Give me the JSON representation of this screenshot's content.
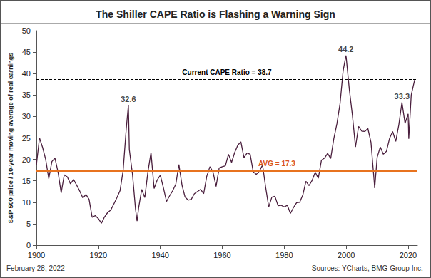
{
  "chart_data": {
    "type": "line",
    "title": "The Shiller CAPE Ratio is Flashing a Warning Sign",
    "ylabel": "S&P 500 price / 10-year moving average of real earnings",
    "date": "February 28, 2022",
    "source": "Sources: YCharts, BMG Group Inc.",
    "x": [
      1900,
      1901,
      1902,
      1903,
      1904,
      1905,
      1906,
      1907,
      1908,
      1909,
      1910,
      1911,
      1912,
      1913,
      1914,
      1915,
      1916,
      1917,
      1918,
      1919,
      1920,
      1921,
      1922,
      1923,
      1924,
      1925,
      1926,
      1927,
      1928,
      1929,
      1929.7,
      1930,
      1931,
      1932,
      1932.5,
      1933,
      1934,
      1935,
      1936,
      1937,
      1938,
      1939,
      1940,
      1941,
      1942,
      1943,
      1944,
      1945,
      1946,
      1947,
      1948,
      1949,
      1950,
      1951,
      1952,
      1953,
      1954,
      1955,
      1956,
      1957,
      1958,
      1959,
      1960,
      1961,
      1962,
      1963,
      1964,
      1965,
      1966,
      1967,
      1968,
      1969,
      1970,
      1971,
      1972,
      1973,
      1974,
      1975,
      1976,
      1977,
      1978,
      1979,
      1980,
      1981,
      1982,
      1983,
      1984,
      1985,
      1986,
      1987,
      1988,
      1989,
      1990,
      1991,
      1992,
      1993,
      1994,
      1995,
      1996,
      1997,
      1998,
      1999,
      1999.9,
      2000,
      2001,
      2002,
      2003,
      2004,
      2005,
      2006,
      2007,
      2008,
      2009,
      2009.2,
      2010,
      2011,
      2012,
      2013,
      2014,
      2015,
      2016,
      2017,
      2018,
      2019,
      2020,
      2020.2,
      2021,
      2022.15
    ],
    "values": [
      18.7,
      25.0,
      22.8,
      20.0,
      15.5,
      19.5,
      20.3,
      17.0,
      12.2,
      16.4,
      15.9,
      14.3,
      15.3,
      14.0,
      12.6,
      11.0,
      11.8,
      10.7,
      6.5,
      6.9,
      6.2,
      5.1,
      6.6,
      7.6,
      8.2,
      9.6,
      11.1,
      12.7,
      17.4,
      27.1,
      32.6,
      22.3,
      16.7,
      8.4,
      5.6,
      8.7,
      13.0,
      11.1,
      17.1,
      21.6,
      13.2,
      15.2,
      16.3,
      13.4,
      10.2,
      11.5,
      12.7,
      14.2,
      18.8,
      14.0,
      11.2,
      10.5,
      10.7,
      12.0,
      12.5,
      13.0,
      12.0,
      16.1,
      18.3,
      17.1,
      13.7,
      18.0,
      18.3,
      18.5,
      21.2,
      19.3,
      21.6,
      23.3,
      24.1,
      20.4,
      21.5,
      21.2,
      17.1,
      16.5,
      17.3,
      18.7,
      13.5,
      8.9,
      11.2,
      11.4,
      9.2,
      9.3,
      8.9,
      9.3,
      7.4,
      8.8,
      9.9,
      10.0,
      11.7,
      14.9,
      13.9,
      15.1,
      17.0,
      15.6,
      19.8,
      20.3,
      21.4,
      20.2,
      24.8,
      28.3,
      32.9,
      40.6,
      44.2,
      43.8,
      36.4,
      30.3,
      22.9,
      27.7,
      26.6,
      26.5,
      27.2,
      24.0,
      15.2,
      13.3,
      20.5,
      22.9,
      21.2,
      21.9,
      24.9,
      26.5,
      24.2,
      28.1,
      33.3,
      28.4,
      30.6,
      24.8,
      35.0,
      38.7
    ],
    "color": "#4a1f3d",
    "xlim": [
      1900,
      2023
    ],
    "xticks": [
      1900,
      1920,
      1940,
      1960,
      1980,
      2000,
      2020
    ],
    "ylim": [
      0,
      50
    ],
    "yticks": [
      0,
      5,
      10,
      15,
      20,
      25,
      30,
      35,
      40,
      45,
      50
    ],
    "grid": false,
    "annotations": [
      {
        "x": 1929.7,
        "y": 32.6,
        "label": "32.6"
      },
      {
        "x": 1999.9,
        "y": 44.2,
        "label": "44.2"
      },
      {
        "x": 2018,
        "y": 33.3,
        "label": "33.3"
      }
    ],
    "reference_lines": [
      {
        "value": 38.7,
        "label": "Current CAPE Ratio = 38.7",
        "color": "#000000",
        "line_style": "dashed"
      },
      {
        "value": 17.3,
        "label": "AVG = 17.3",
        "color": "#e8731f",
        "line_style": "solid"
      }
    ]
  }
}
